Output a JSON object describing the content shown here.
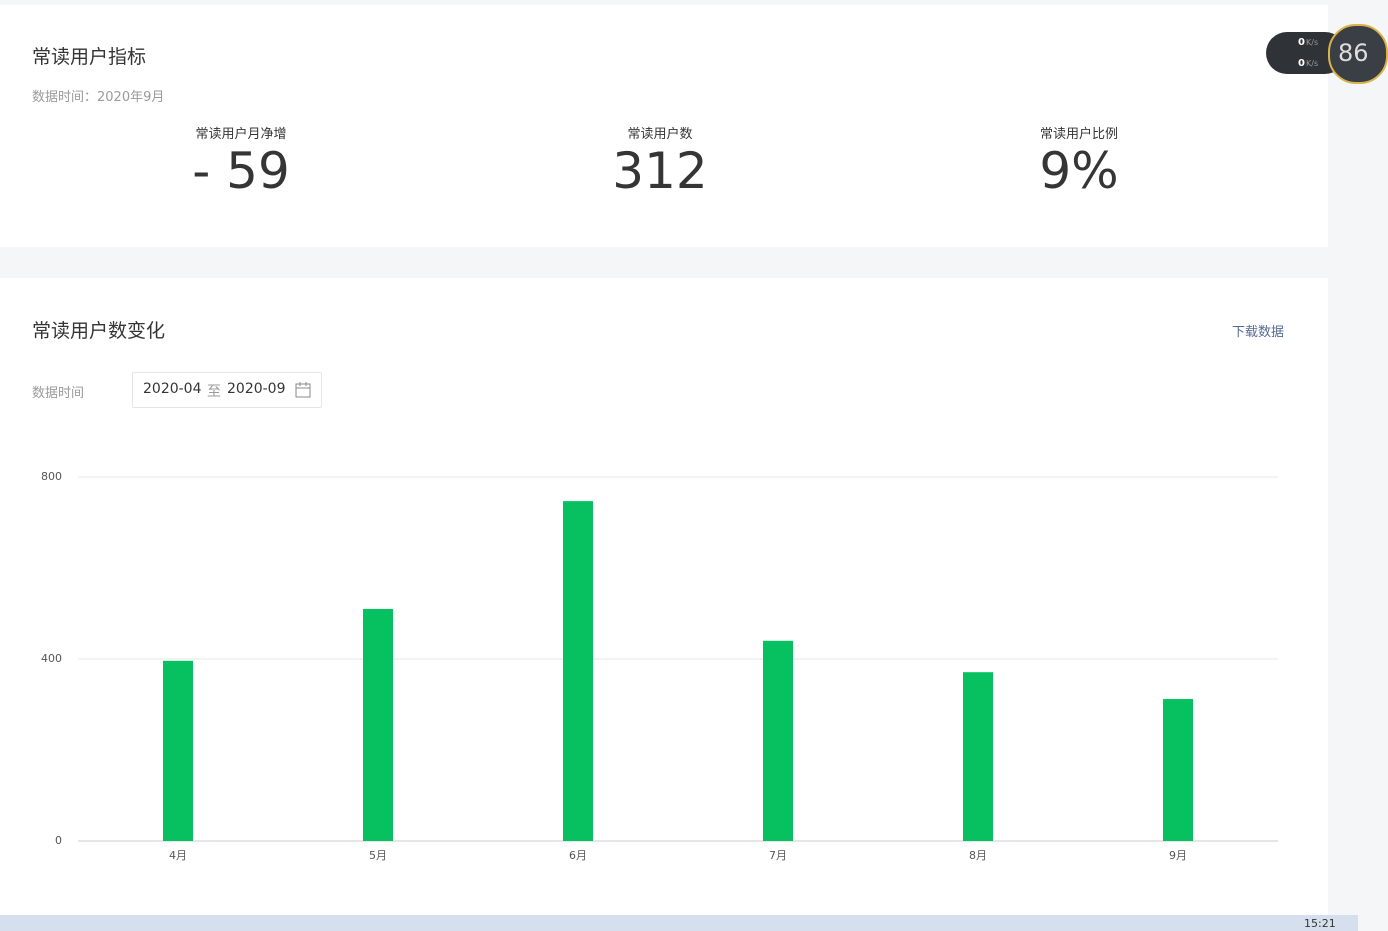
{
  "header": {
    "title": "常读用户指标",
    "data_time": "数据时间：2020年9月"
  },
  "metrics": [
    {
      "label": "常读用户月净增",
      "value": "- 59"
    },
    {
      "label": "常读用户数",
      "value": "312"
    },
    {
      "label": "常读用户比例",
      "value": "9%"
    }
  ],
  "section": {
    "title": "常读用户数变化",
    "download": "下载数据",
    "date_label": "数据时间",
    "date_start": "2020-04",
    "date_sep": "至",
    "date_end": "2020-09"
  },
  "widget": {
    "up": "0",
    "up_unit": "K/s",
    "down": "0",
    "down_unit": "K/s",
    "percent": "86"
  },
  "taskbar": {
    "time": "15:21"
  },
  "chart_data": {
    "type": "bar",
    "categories": [
      "4月",
      "5月",
      "6月",
      "7月",
      "8月",
      "9月"
    ],
    "values": [
      396,
      510,
      747,
      440,
      371,
      312
    ],
    "color": "#07c160",
    "ylim": [
      0,
      800
    ],
    "yticks": [
      0,
      400,
      800
    ],
    "grid": true
  }
}
